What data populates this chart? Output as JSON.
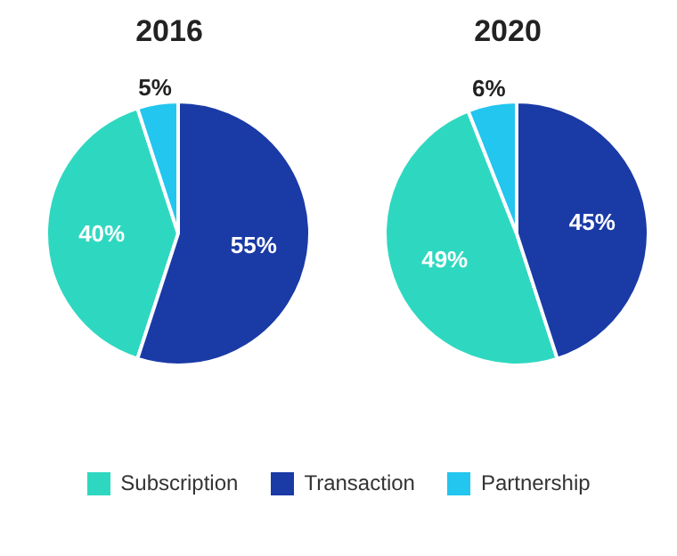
{
  "chart_data": [
    {
      "type": "pie",
      "title": "2016",
      "categories": [
        "Subscription",
        "Transaction",
        "Partnership"
      ],
      "values": [
        40,
        55,
        5
      ],
      "value_labels": [
        "40%",
        "55%",
        "5%"
      ],
      "colors": [
        "#2ed8c0",
        "#1a3aa6",
        "#22c6ee"
      ],
      "legend": "bottom"
    },
    {
      "type": "pie",
      "title": "2020",
      "categories": [
        null,
        null,
        null
      ],
      "values": [
        49,
        45,
        6
      ],
      "value_labels": [
        "49%",
        "45%",
        "6%"
      ],
      "colors": [
        "#2ed8c0",
        "#1a3aa6",
        "#22c6ee"
      ]
    }
  ]
}
